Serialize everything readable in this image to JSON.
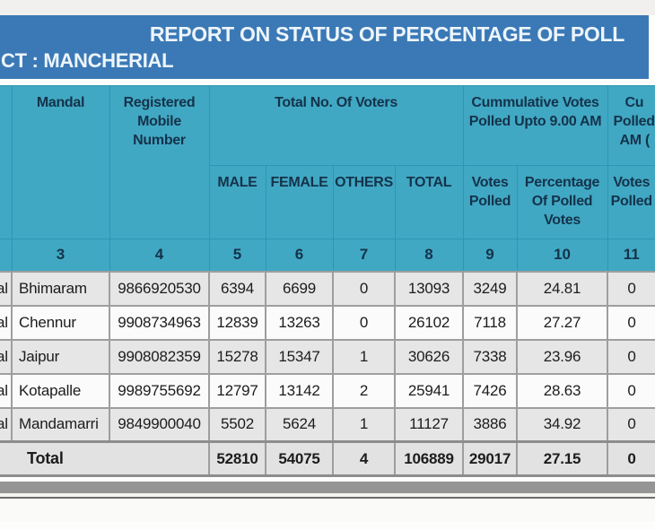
{
  "page": {
    "top_title": "REPORT ON STATUS OF PERCENTAGE OF POLL",
    "district_label": "CT : MANCHERIAL"
  },
  "table": {
    "group_headers": {
      "mandal": "Mandal",
      "mobile": "Registered Mobile Number",
      "voters": "Total No. Of Voters",
      "cumulative_9am": "Cummulative Votes Polled Upto 9.00 AM",
      "cut_col_lines": [
        "Cu",
        "Polled",
        "AM ("
      ]
    },
    "sub_headers": [
      "MALE",
      "FEMALE",
      "OTHERS",
      "TOTAL",
      "Votes Polled",
      "Percentage Of Polled Votes",
      "Votes Polled"
    ],
    "column_numbers": [
      "3",
      "4",
      "5",
      "6",
      "7",
      "8",
      "9",
      "10",
      "11"
    ],
    "rows": [
      {
        "edge": "al",
        "mandal": "Bhimaram",
        "mobile": "9866920530",
        "male": "6394",
        "female": "6699",
        "others": "0",
        "total": "13093",
        "votes": "3249",
        "pct": "24.81",
        "votes2": "0"
      },
      {
        "edge": "al",
        "mandal": "Chennur",
        "mobile": "9908734963",
        "male": "12839",
        "female": "13263",
        "others": "0",
        "total": "26102",
        "votes": "7118",
        "pct": "27.27",
        "votes2": "0"
      },
      {
        "edge": "al",
        "mandal": "Jaipur",
        "mobile": "9908082359",
        "male": "15278",
        "female": "15347",
        "others": "1",
        "total": "30626",
        "votes": "7338",
        "pct": "23.96",
        "votes2": "0"
      },
      {
        "edge": "al",
        "mandal": "Kotapalle",
        "mobile": "9989755692",
        "male": "12797",
        "female": "13142",
        "others": "2",
        "total": "25941",
        "votes": "7426",
        "pct": "28.63",
        "votes2": "0"
      },
      {
        "edge": "al",
        "mandal": "Mandamarri",
        "mobile": "9849900040",
        "male": "5502",
        "female": "5624",
        "others": "1",
        "total": "11127",
        "votes": "3886",
        "pct": "34.92",
        "votes2": "0"
      }
    ],
    "total_row": {
      "label": "Total",
      "male": "52810",
      "female": "54075",
      "others": "4",
      "total": "106889",
      "votes": "29017",
      "pct": "27.15",
      "votes2": "0"
    }
  },
  "colors": {
    "band_blue": "#3b79b6",
    "header_teal": "#41a8c4",
    "header_text": "#14334a",
    "row_alt_gray": "#e6e6e6",
    "border_gray": "#9e9e9e",
    "scrollbar_thumb": "#959595"
  }
}
